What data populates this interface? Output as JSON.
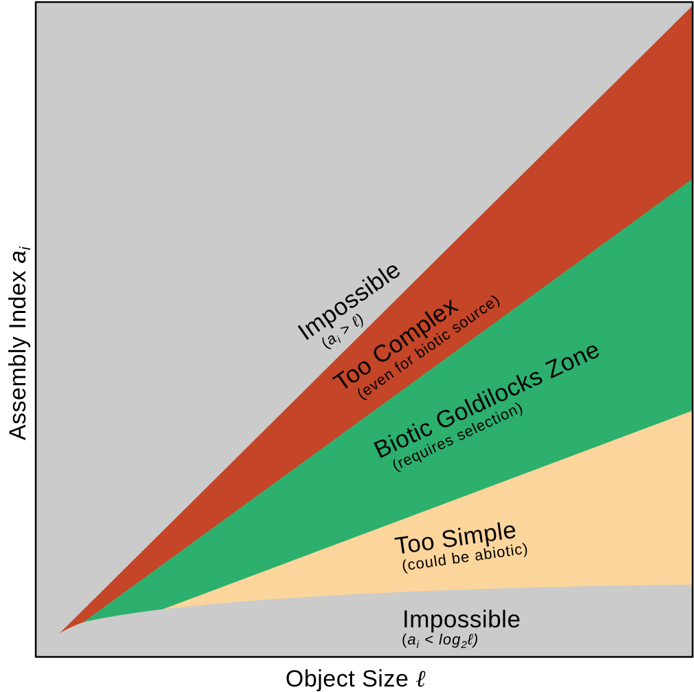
{
  "axes": {
    "x_label": "Object Size",
    "x_symbol": "ℓ",
    "y_label": "Assembly Index",
    "y_symbol": "a",
    "y_symbol_sub": "i"
  },
  "regions": {
    "impossible_top": {
      "label": "Impossible",
      "condition_a": "a",
      "condition_sub": "i",
      "condition_rest": " > ℓ)",
      "color": "#cbcbcb"
    },
    "too_complex": {
      "label": "Too Complex",
      "note": "(even for biotic source)",
      "color": "#c44527"
    },
    "goldilocks": {
      "label": "Biotic Goldilocks Zone",
      "note": "(requires selection)",
      "color": "#2daf6d"
    },
    "too_simple": {
      "label": "Too Simple",
      "note": "(could be abiotic)",
      "color": "#fbd59b"
    },
    "impossible_bottom": {
      "label": "Impossible",
      "condition_a": "a",
      "condition_sub": "i",
      "condition_mid": " < log",
      "condition_sub2": "2",
      "condition_rest": "ℓ)",
      "color": "#cbcbcb"
    }
  }
}
